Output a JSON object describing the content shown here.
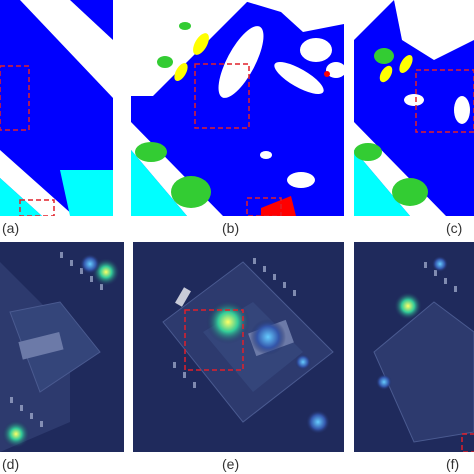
{
  "colors": {
    "seg_building_blue": "#0000ff",
    "seg_road_white": "#ffffff",
    "seg_vegetation_green": "#33cc33",
    "seg_grass_cyan": "#00ffff",
    "seg_car_yellow": "#ffff00",
    "seg_clutter_red": "#ff0000",
    "highlight_box": "#e0202a",
    "heatmap_base": "#1f2a5c"
  },
  "panels": {
    "a": {
      "label": "(a)",
      "kind": "segmentation"
    },
    "b": {
      "label": "(b)",
      "kind": "segmentation"
    },
    "c": {
      "label": "(c)",
      "kind": "segmentation"
    },
    "d": {
      "label": "(d)",
      "kind": "attention-heatmap"
    },
    "e": {
      "label": "(e)",
      "kind": "attention-heatmap"
    },
    "f": {
      "label": "(f)",
      "kind": "attention-heatmap"
    }
  }
}
